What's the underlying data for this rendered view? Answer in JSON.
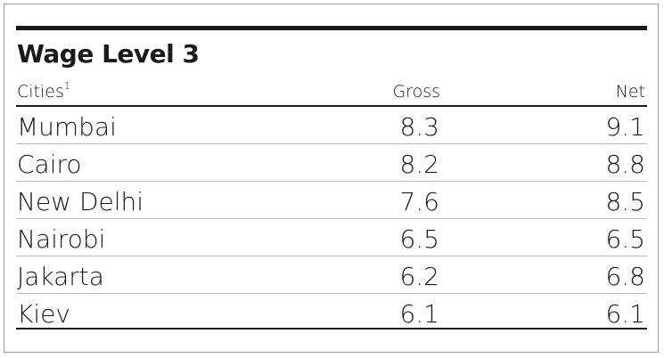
{
  "chart_data": {
    "type": "table",
    "title": "Wage Level 3",
    "columns": [
      "Cities",
      "Gross",
      "Net"
    ],
    "first_column_footnote": "1",
    "rows": [
      {
        "city": "Mumbai",
        "gross": "8.3",
        "net": "9.1"
      },
      {
        "city": "Cairo",
        "gross": "8.2",
        "net": "8.8"
      },
      {
        "city": "New Delhi",
        "gross": "7.6",
        "net": "8.5"
      },
      {
        "city": "Nairobi",
        "gross": "6.5",
        "net": "6.5"
      },
      {
        "city": "Jakarta",
        "gross": "6.2",
        "net": "6.8"
      },
      {
        "city": "Kiev",
        "gross": "6.1",
        "net": "6.1"
      }
    ]
  }
}
